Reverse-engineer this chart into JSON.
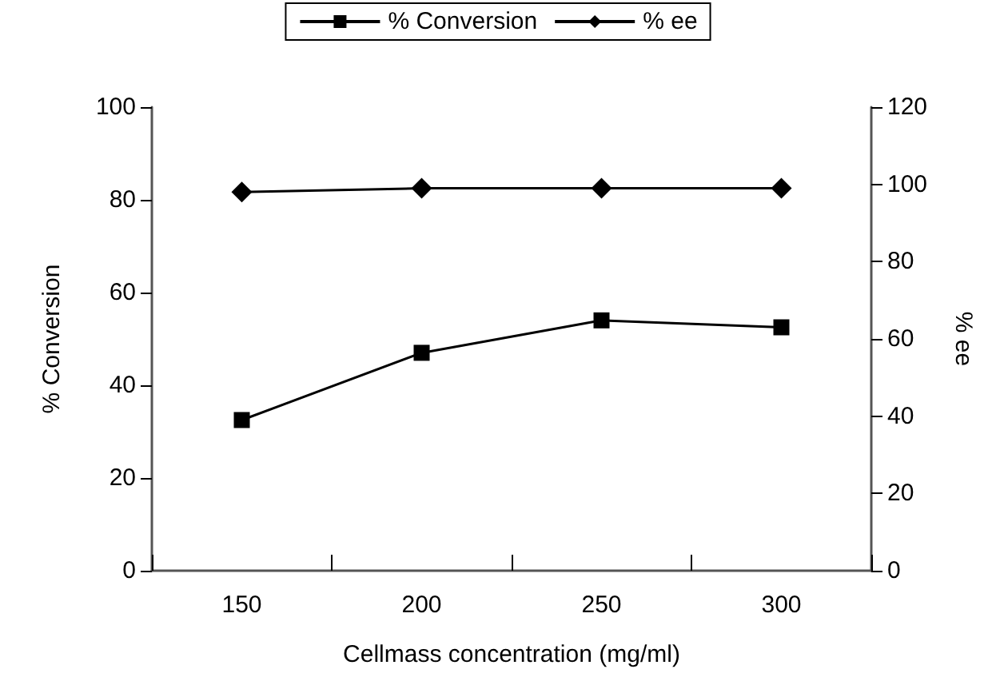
{
  "chart_data": {
    "type": "line",
    "xlabel": "Cellmass concentration (mg/ml)",
    "ylabel": "% Conversion",
    "y2label": "% ee",
    "categories": [
      "150",
      "200",
      "250",
      "300"
    ],
    "series": [
      {
        "name": "% Conversion",
        "color": "#000000",
        "marker": "square",
        "values": [
          32.5,
          47,
          54,
          52.5
        ]
      },
      {
        "name": "% ee",
        "color": "#000000",
        "marker": "diamond",
        "axis": "y2",
        "values": [
          98,
          99,
          99,
          99
        ]
      }
    ],
    "ylim": [
      0,
      100
    ],
    "yticks": [
      0,
      20,
      40,
      60,
      80,
      100
    ],
    "y2lim": [
      0,
      120
    ],
    "y2ticks": [
      0,
      20,
      40,
      60,
      80,
      100,
      120
    ],
    "grid": false,
    "legend": "top"
  }
}
